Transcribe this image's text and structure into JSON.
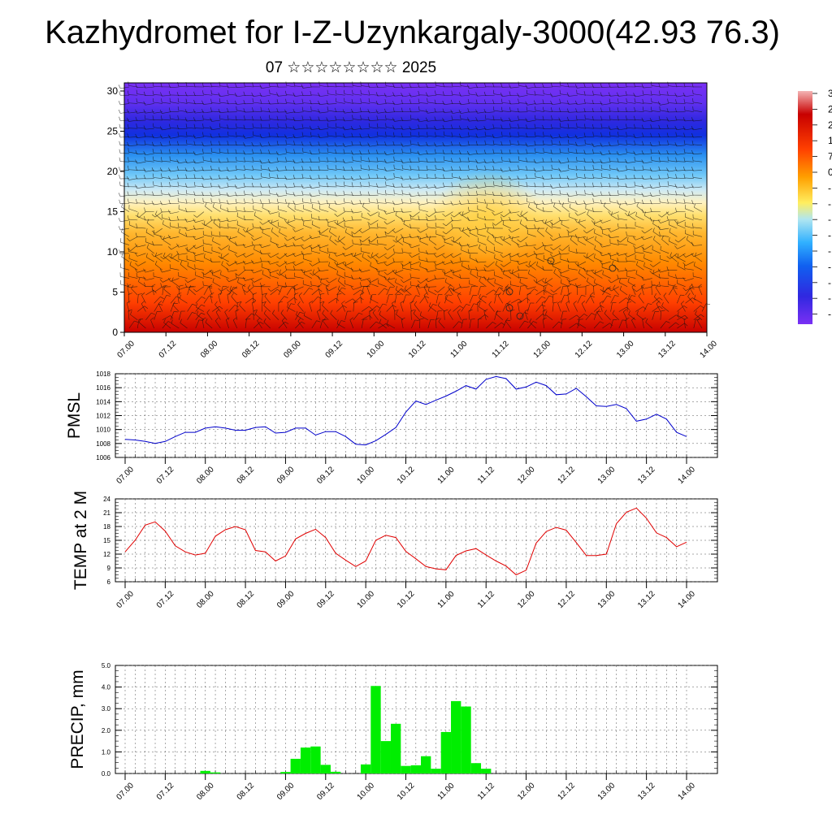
{
  "title": "Kazhydromet for I-Z-Uzynkargaly-3000(42.93 76.3)",
  "subtitle": "07 ☆☆☆☆☆☆☆☆ 2025",
  "time_labels": [
    "07.00",
    "07.12",
    "08.00",
    "08.12",
    "09.00",
    "09.12",
    "10.00",
    "10.12",
    "11.00",
    "11.12",
    "12.00",
    "12.12",
    "13.00",
    "13.12",
    "14.00"
  ],
  "chart_data": [
    {
      "type": "heatmap",
      "name": "upper-air-cross-section",
      "y": [
        0,
        30
      ],
      "yticks": [
        0,
        5,
        10,
        15,
        20,
        25,
        30
      ],
      "colorbar_labels": [
        "3",
        "2",
        "2",
        "1",
        "7",
        "0",
        "-",
        "-",
        "-",
        "-",
        "-",
        "-",
        "-",
        "-",
        "-"
      ],
      "colors": [
        "#f4b4b4",
        "#c80000",
        "#ff4000",
        "#ffa000",
        "#ffee60",
        "#b0e6f0",
        "#30b0ff",
        "#1060f0",
        "#2020d0",
        "#7030f0"
      ]
    },
    {
      "type": "line",
      "ylabel": "PMSL",
      "ylim": [
        1006,
        1018
      ],
      "yticks": [
        1006,
        1008,
        1010,
        1012,
        1014,
        1016,
        1018
      ],
      "color": "#0000cc",
      "values": [
        1008.6,
        1008.5,
        1008.3,
        1008.0,
        1008.3,
        1009.0,
        1009.6,
        1009.6,
        1010.2,
        1010.4,
        1010.2,
        1009.9,
        1009.9,
        1010.3,
        1010.4,
        1009.5,
        1009.6,
        1010.2,
        1010.2,
        1009.2,
        1009.7,
        1009.7,
        1009.0,
        1007.9,
        1007.8,
        1008.4,
        1009.3,
        1010.3,
        1012.5,
        1014.1,
        1013.6,
        1014.2,
        1014.8,
        1015.5,
        1016.3,
        1015.8,
        1017.2,
        1017.6,
        1017.3,
        1015.8,
        1016.1,
        1016.8,
        1016.3,
        1015.0,
        1015.1,
        1015.9,
        1014.7,
        1013.4,
        1013.3,
        1013.6,
        1013.0,
        1011.2,
        1011.5,
        1012.2,
        1011.5,
        1009.6,
        1009.0
      ]
    },
    {
      "type": "line",
      "ylabel": "TEMP at 2 M",
      "ylim": [
        6,
        24
      ],
      "yticks": [
        6,
        9,
        12,
        15,
        18,
        21,
        24
      ],
      "color": "#e00000",
      "values": [
        12.5,
        15.0,
        18.3,
        19.0,
        17.0,
        13.8,
        12.5,
        11.8,
        12.2,
        15.9,
        17.3,
        18.0,
        17.3,
        12.8,
        12.5,
        10.5,
        11.6,
        15.3,
        16.5,
        17.4,
        15.6,
        12.2,
        10.7,
        9.3,
        10.5,
        15.0,
        16.1,
        15.6,
        12.6,
        11.0,
        9.3,
        8.8,
        8.6,
        11.7,
        12.7,
        13.2,
        11.8,
        10.5,
        9.4,
        7.5,
        8.5,
        14.4,
        16.9,
        17.8,
        17.2,
        14.5,
        11.7,
        11.7,
        12.0,
        18.6,
        21.1,
        22.0,
        19.8,
        16.6,
        15.6,
        13.6,
        14.6
      ]
    },
    {
      "type": "bar",
      "ylabel": "PRECIP, mm",
      "ylim": [
        0,
        5
      ],
      "yticks": [
        "0.0",
        "1.0",
        "2.0",
        "3.0",
        "4.0",
        "5.0"
      ],
      "color": "#00ee00",
      "values": [
        0,
        0,
        0,
        0,
        0,
        0,
        0,
        0,
        0.12,
        0.05,
        0,
        0,
        0,
        0,
        0,
        0,
        0.07,
        0.68,
        1.2,
        1.25,
        0.4,
        0.08,
        0,
        0,
        0.42,
        4.05,
        1.5,
        2.3,
        0.35,
        0.38,
        0.8,
        0.22,
        1.92,
        3.35,
        3.1,
        0.48,
        0.22,
        0,
        0,
        0,
        0,
        0,
        0,
        0,
        0,
        0,
        0,
        0,
        0,
        0,
        0,
        0,
        0,
        0,
        0,
        0,
        0
      ]
    }
  ]
}
